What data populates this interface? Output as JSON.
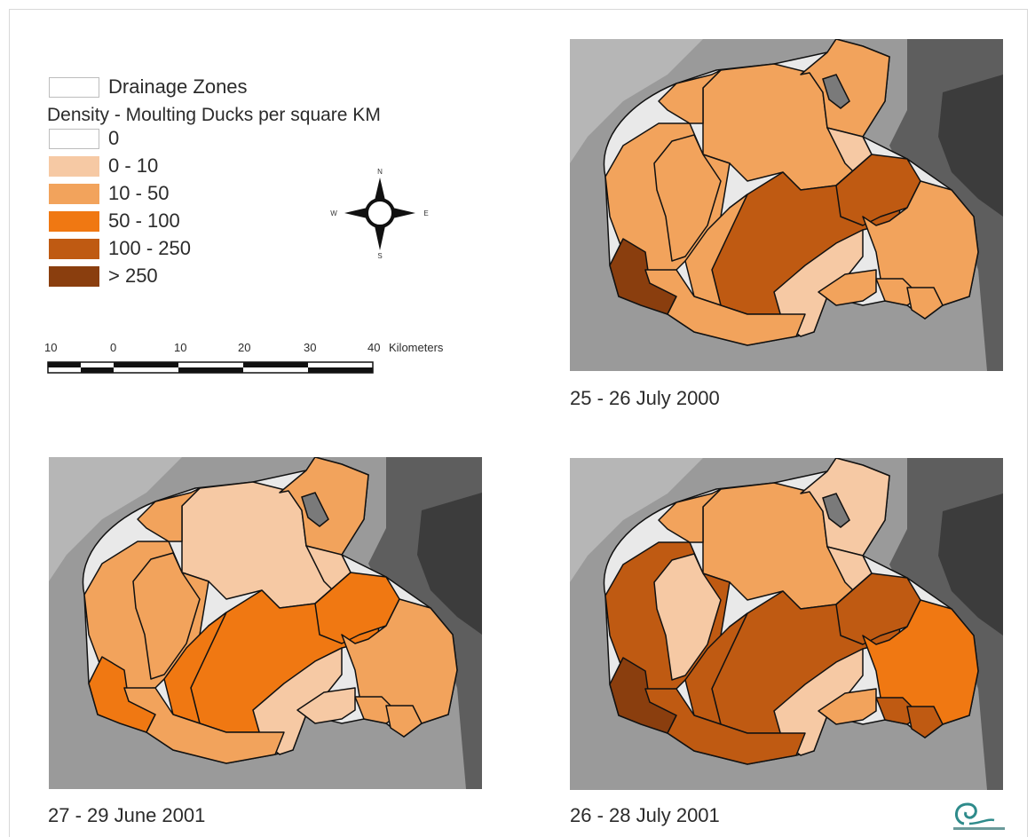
{
  "legend": {
    "drainage_label": "Drainage Zones",
    "density_title": "Density - Moulting Ducks per square KM",
    "classes": [
      {
        "label": "0",
        "color": "#ffffff"
      },
      {
        "label": "0 - 10",
        "color": "#f6c9a4"
      },
      {
        "label": "10 - 50",
        "color": "#f2a35c"
      },
      {
        "label": "50 - 100",
        "color": "#f07812"
      },
      {
        "label": "100 - 250",
        "color": "#bf5a12"
      },
      {
        "label": "> 250",
        "color": "#8a3e0e"
      }
    ]
  },
  "compass": {
    "n": "N",
    "s": "S",
    "e": "E",
    "w": "W"
  },
  "scale_bar": {
    "ticks": [
      "10",
      "0",
      "10",
      "20",
      "30",
      "40"
    ],
    "unit": "Kilometers"
  },
  "maps": [
    {
      "caption": "25 - 26 July 2000",
      "zone_classes": [
        "10 - 50",
        "10 - 50",
        "10 - 50",
        "10 - 50",
        "10 - 50",
        "0 - 10",
        "100 - 250",
        "100 - 250",
        "10 - 50",
        "10 - 50",
        "10 - 50",
        "0 - 10",
        "10 - 50",
        "10 - 50",
        "> 250",
        "10 - 50"
      ]
    },
    {
      "caption": "27 - 29 June 2001",
      "zone_classes": [
        "0 - 10",
        "10 - 50",
        "10 - 50",
        "10 - 50",
        "10 - 50",
        "0 - 10",
        "50 - 100",
        "50 - 100",
        "10 - 50",
        "10 - 50",
        "10 - 50",
        "0 - 10",
        "0 - 10",
        "50 - 100",
        "50 - 100",
        "10 - 50"
      ]
    },
    {
      "caption": "26 - 28 July 2001",
      "zone_classes": [
        "10 - 50",
        "100 - 250",
        "0 - 10",
        "10 - 50",
        "0 - 10",
        "0 - 10",
        "100 - 250",
        "100 - 250",
        "50 - 100",
        "100 - 250",
        "100 - 250",
        "0 - 10",
        "10 - 50",
        "100 - 250",
        "> 250",
        "100 - 250"
      ]
    }
  ]
}
